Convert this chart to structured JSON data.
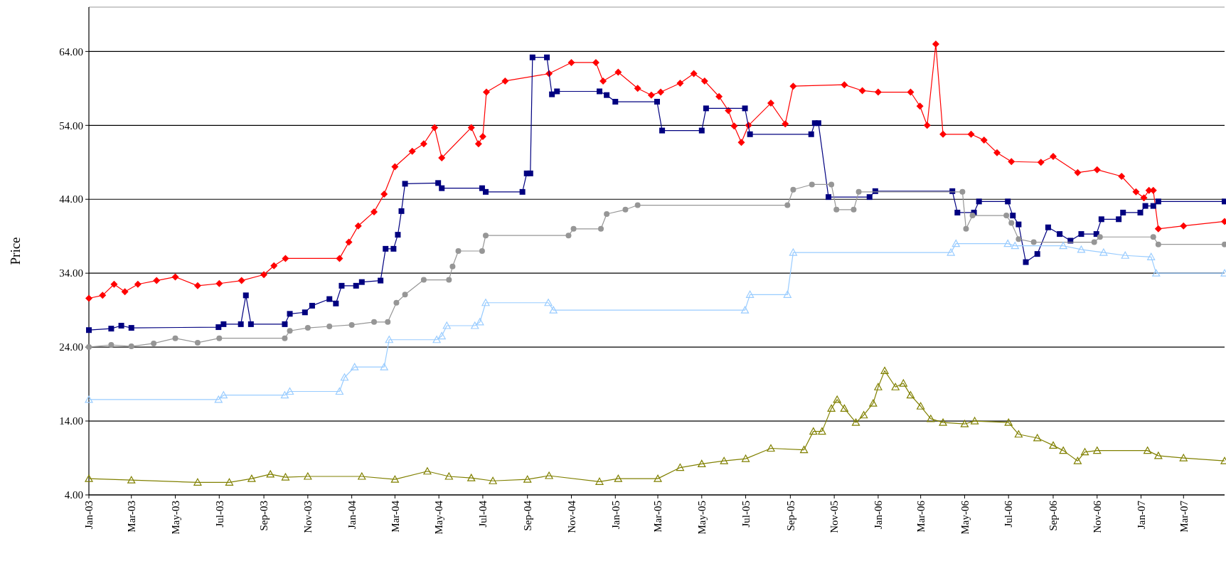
{
  "chart_data": {
    "type": "line",
    "ylabel": "Price",
    "grid": "y",
    "line_style": "solid",
    "xlim": [
      "2003-01-01",
      "2007-04-27"
    ],
    "xticks": [
      {
        "value": "2003-01-01",
        "label": "Jan-03"
      },
      {
        "value": "2003-03-01",
        "label": "Mar-03"
      },
      {
        "value": "2003-05-01",
        "label": "May-03"
      },
      {
        "value": "2003-07-01",
        "label": "Jul-03"
      },
      {
        "value": "2003-09-01",
        "label": "Sep-03"
      },
      {
        "value": "2003-11-01",
        "label": "Nov-03"
      },
      {
        "value": "2004-01-01",
        "label": "Jan-04"
      },
      {
        "value": "2004-03-01",
        "label": "Mar-04"
      },
      {
        "value": "2004-05-01",
        "label": "May-04"
      },
      {
        "value": "2004-07-01",
        "label": "Jul-04"
      },
      {
        "value": "2004-09-01",
        "label": "Sep-04"
      },
      {
        "value": "2004-11-01",
        "label": "Nov-04"
      },
      {
        "value": "2005-01-01",
        "label": "Jan-05"
      },
      {
        "value": "2005-03-01",
        "label": "Mar-05"
      },
      {
        "value": "2005-05-01",
        "label": "May-05"
      },
      {
        "value": "2005-07-01",
        "label": "Jul-05"
      },
      {
        "value": "2005-09-01",
        "label": "Sep-05"
      },
      {
        "value": "2005-11-01",
        "label": "Nov-05"
      },
      {
        "value": "2006-01-01",
        "label": "Jan-06"
      },
      {
        "value": "2006-03-01",
        "label": "Mar-06"
      },
      {
        "value": "2006-05-01",
        "label": "May-06"
      },
      {
        "value": "2006-07-01",
        "label": "Jul-06"
      },
      {
        "value": "2006-09-01",
        "label": "Sep-06"
      },
      {
        "value": "2006-11-01",
        "label": "Nov-06"
      },
      {
        "value": "2007-01-01",
        "label": "Jan-07"
      },
      {
        "value": "2007-03-01",
        "label": "Mar-07"
      }
    ],
    "ylim": [
      4,
      70
    ],
    "yticks": [
      {
        "value": 4,
        "label": "4.00"
      },
      {
        "value": 14,
        "label": "14.00"
      },
      {
        "value": 24,
        "label": "24.00"
      },
      {
        "value": 34,
        "label": "34.00"
      },
      {
        "value": 44,
        "label": "44.00"
      },
      {
        "value": 54,
        "label": "54.00"
      },
      {
        "value": 64,
        "label": "64.00"
      }
    ],
    "series": [
      {
        "color": "#ff0000",
        "marker": "diamond",
        "x": [
          "2003-01-01",
          "2003-01-20",
          "2003-02-05",
          "2003-02-20",
          "2003-03-10",
          "2003-04-05",
          "2003-05-01",
          "2003-06-01",
          "2003-07-01",
          "2003-08-01",
          "2003-09-01",
          "2003-09-15",
          "2003-10-01",
          "2003-12-15",
          "2003-12-28",
          "2004-01-10",
          "2004-02-01",
          "2004-02-15",
          "2004-03-01",
          "2004-03-25",
          "2004-04-10",
          "2004-04-25",
          "2004-05-05",
          "2004-06-15",
          "2004-06-25",
          "2004-07-01",
          "2004-07-06",
          "2004-08-01",
          "2004-10-01",
          "2004-11-01",
          "2004-12-05",
          "2004-12-15",
          "2005-01-05",
          "2005-02-01",
          "2005-02-20",
          "2005-03-05",
          "2005-04-01",
          "2005-04-20",
          "2005-05-05",
          "2005-05-25",
          "2005-06-07",
          "2005-06-15",
          "2005-06-25",
          "2005-07-05",
          "2005-08-05",
          "2005-08-25",
          "2005-09-05",
          "2005-11-15",
          "2005-12-10",
          "2006-01-01",
          "2006-02-15",
          "2006-02-28",
          "2006-03-10",
          "2006-03-22",
          "2006-04-01",
          "2006-05-10",
          "2006-05-28",
          "2006-06-15",
          "2006-07-05",
          "2006-08-15",
          "2006-09-01",
          "2006-10-05",
          "2006-11-01",
          "2006-12-05",
          "2006-12-25",
          "2007-01-05",
          "2007-01-12",
          "2007-01-18",
          "2007-01-25",
          "2007-03-01",
          "2007-04-27"
        ],
        "values": [
          30.6,
          31.0,
          32.5,
          31.5,
          32.5,
          33.0,
          33.5,
          32.3,
          32.6,
          33.0,
          33.8,
          35.0,
          36.0,
          36.0,
          38.2,
          40.4,
          42.3,
          44.7,
          48.4,
          50.5,
          51.5,
          53.7,
          49.6,
          53.7,
          51.5,
          52.5,
          58.5,
          60.0,
          61.0,
          62.5,
          62.5,
          60.0,
          61.2,
          59.0,
          58.1,
          58.5,
          59.7,
          61.0,
          60.0,
          57.9,
          56.0,
          53.9,
          51.7,
          54.0,
          57.0,
          54.2,
          59.3,
          59.5,
          58.7,
          58.5,
          58.5,
          56.6,
          54.0,
          65.0,
          52.8,
          52.8,
          52.0,
          50.3,
          49.1,
          49.0,
          49.8,
          47.6,
          48.0,
          47.1,
          45.0,
          44.2,
          45.2,
          45.2,
          40.0,
          40.4,
          41.0
        ]
      },
      {
        "color": "#000080",
        "marker": "square",
        "x": [
          "2003-01-01",
          "2003-02-01",
          "2003-02-15",
          "2003-03-01",
          "2003-06-30",
          "2003-07-07",
          "2003-07-31",
          "2003-08-07",
          "2003-08-14",
          "2003-09-30",
          "2003-10-07",
          "2003-10-28",
          "2003-11-07",
          "2003-12-01",
          "2003-12-10",
          "2003-12-18",
          "2004-01-07",
          "2004-01-15",
          "2004-02-10",
          "2004-02-17",
          "2004-02-28",
          "2004-03-05",
          "2004-03-10",
          "2004-03-15",
          "2004-04-30",
          "2004-05-05",
          "2004-06-30",
          "2004-07-05",
          "2004-08-25",
          "2004-08-31",
          "2004-09-05",
          "2004-09-08",
          "2004-09-28",
          "2004-10-05",
          "2004-10-12",
          "2004-12-10",
          "2004-12-20",
          "2005-01-01",
          "2005-02-28",
          "2005-03-07",
          "2005-05-01",
          "2005-05-07",
          "2005-06-30",
          "2005-07-07",
          "2005-09-30",
          "2005-10-05",
          "2005-10-10",
          "2005-10-24",
          "2005-12-20",
          "2005-12-28",
          "2006-04-14",
          "2006-04-21",
          "2006-05-14",
          "2006-05-21",
          "2006-06-30",
          "2006-07-07",
          "2006-07-15",
          "2006-07-25",
          "2006-08-10",
          "2006-08-25",
          "2006-09-10",
          "2006-09-25",
          "2006-10-10",
          "2006-10-31",
          "2006-11-07",
          "2006-12-01",
          "2006-12-07",
          "2006-12-31",
          "2007-01-07",
          "2007-01-18",
          "2007-01-25",
          "2007-04-27"
        ],
        "values": [
          26.3,
          26.5,
          26.9,
          26.6,
          26.7,
          27.1,
          27.1,
          31.0,
          27.1,
          27.1,
          28.5,
          28.7,
          29.6,
          30.5,
          29.9,
          32.3,
          32.3,
          32.8,
          33.0,
          37.3,
          37.3,
          39.2,
          42.4,
          46.1,
          46.2,
          45.5,
          45.5,
          45.0,
          45.0,
          47.5,
          47.5,
          63.2,
          63.2,
          58.2,
          58.6,
          58.6,
          58.1,
          57.2,
          57.2,
          53.3,
          53.3,
          56.3,
          56.3,
          52.8,
          52.8,
          54.3,
          54.3,
          44.3,
          44.3,
          45.1,
          45.1,
          42.2,
          42.2,
          43.7,
          43.7,
          41.8,
          40.6,
          35.5,
          36.6,
          40.2,
          39.3,
          38.4,
          39.3,
          39.3,
          41.3,
          41.3,
          42.2,
          42.2,
          43.1,
          43.1,
          43.7,
          43.7
        ]
      },
      {
        "color": "#969696",
        "marker": "circle",
        "x": [
          "2003-01-01",
          "2003-02-01",
          "2003-03-01",
          "2003-04-01",
          "2003-05-01",
          "2003-06-01",
          "2003-07-01",
          "2003-09-30",
          "2003-10-07",
          "2003-11-01",
          "2003-12-01",
          "2004-01-01",
          "2004-02-01",
          "2004-02-20",
          "2004-03-03",
          "2004-03-15",
          "2004-04-10",
          "2004-05-15",
          "2004-05-20",
          "2004-05-28",
          "2004-06-30",
          "2004-07-05",
          "2004-10-28",
          "2004-11-04",
          "2004-12-12",
          "2004-12-20",
          "2005-01-15",
          "2005-02-01",
          "2005-08-28",
          "2005-09-05",
          "2005-10-01",
          "2005-10-28",
          "2005-11-04",
          "2005-11-28",
          "2005-12-05",
          "2006-04-28",
          "2006-05-03",
          "2006-05-12",
          "2006-06-28",
          "2006-07-05",
          "2006-07-15",
          "2006-08-05",
          "2006-10-28",
          "2006-11-05",
          "2007-01-18",
          "2007-01-25",
          "2007-04-27"
        ],
        "values": [
          24.0,
          24.3,
          24.1,
          24.5,
          25.2,
          24.6,
          25.2,
          25.2,
          26.2,
          26.6,
          26.8,
          27.0,
          27.4,
          27.4,
          30.0,
          31.1,
          33.1,
          33.1,
          34.9,
          37.0,
          37.0,
          39.1,
          39.1,
          40.0,
          40.0,
          42.0,
          42.6,
          43.2,
          43.2,
          45.3,
          46.0,
          46.0,
          42.6,
          42.6,
          45.0,
          45.0,
          40.0,
          41.8,
          41.8,
          40.8,
          38.6,
          38.2,
          38.2,
          38.9,
          38.9,
          37.9,
          37.9
        ]
      },
      {
        "color": "#99ccff",
        "marker": "triangle",
        "x": [
          "2003-01-01",
          "2003-06-30",
          "2003-07-07",
          "2003-09-30",
          "2003-10-07",
          "2003-12-15",
          "2003-12-22",
          "2004-01-05",
          "2004-02-15",
          "2004-02-22",
          "2004-04-28",
          "2004-05-05",
          "2004-05-12",
          "2004-06-20",
          "2004-06-27",
          "2004-07-05",
          "2004-09-30",
          "2004-10-07",
          "2005-06-30",
          "2005-07-07",
          "2005-08-28",
          "2005-09-05",
          "2006-04-12",
          "2006-04-19",
          "2006-06-30",
          "2006-07-10",
          "2006-09-15",
          "2006-10-10",
          "2006-11-10",
          "2006-12-10",
          "2007-01-15",
          "2007-01-22",
          "2007-04-27"
        ],
        "values": [
          16.9,
          16.9,
          17.5,
          17.5,
          18.0,
          18.0,
          19.9,
          21.3,
          21.3,
          25.0,
          25.0,
          25.5,
          26.9,
          26.9,
          27.4,
          30.0,
          30.0,
          29.0,
          29.0,
          31.1,
          31.1,
          36.8,
          36.8,
          38.0,
          38.0,
          37.7,
          37.7,
          37.2,
          36.8,
          36.4,
          36.2,
          34.0,
          34.0
        ]
      },
      {
        "color": "#808000",
        "marker": "triangle",
        "x": [
          "2003-01-01",
          "2003-03-01",
          "2003-06-01",
          "2003-07-15",
          "2003-08-15",
          "2003-09-10",
          "2003-10-01",
          "2003-11-01",
          "2004-01-15",
          "2004-03-01",
          "2004-04-15",
          "2004-05-15",
          "2004-06-15",
          "2004-07-15",
          "2004-09-01",
          "2004-10-01",
          "2004-12-10",
          "2005-01-05",
          "2005-03-01",
          "2005-04-01",
          "2005-05-01",
          "2005-06-01",
          "2005-07-01",
          "2005-08-05",
          "2005-09-20",
          "2005-10-03",
          "2005-10-15",
          "2005-10-28",
          "2005-11-05",
          "2005-11-15",
          "2005-12-01",
          "2005-12-12",
          "2005-12-25",
          "2006-01-01",
          "2006-01-10",
          "2006-01-25",
          "2006-02-05",
          "2006-02-15",
          "2006-03-01",
          "2006-03-15",
          "2006-04-01",
          "2006-05-01",
          "2006-05-15",
          "2006-07-01",
          "2006-07-15",
          "2006-08-10",
          "2006-09-01",
          "2006-09-15",
          "2006-10-05",
          "2006-10-15",
          "2006-11-01",
          "2007-01-10",
          "2007-01-25",
          "2007-03-01",
          "2007-04-27"
        ],
        "values": [
          6.2,
          6.0,
          5.7,
          5.7,
          6.2,
          6.8,
          6.4,
          6.5,
          6.5,
          6.1,
          7.2,
          6.5,
          6.3,
          5.9,
          6.1,
          6.6,
          5.8,
          6.2,
          6.2,
          7.7,
          8.2,
          8.6,
          8.9,
          10.3,
          10.1,
          12.6,
          12.6,
          15.7,
          16.9,
          15.7,
          13.8,
          14.8,
          16.4,
          18.6,
          20.8,
          18.6,
          19.1,
          17.5,
          16.0,
          14.3,
          13.8,
          13.6,
          14.0,
          13.8,
          12.2,
          11.7,
          10.7,
          10.0,
          8.6,
          9.8,
          10.0,
          10.0,
          9.3,
          9.0,
          8.6
        ]
      }
    ]
  }
}
